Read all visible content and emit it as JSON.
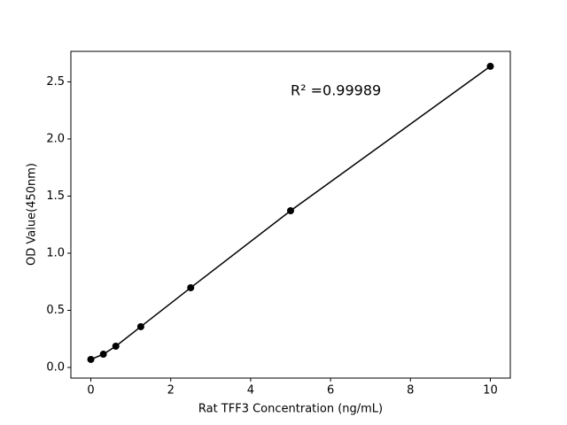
{
  "chart_data": {
    "type": "line",
    "x_label": "Rat TFF3 Concentration (ng/mL)",
    "y_label": "OD Value(450nm)",
    "annotation": "R² =0.99989",
    "x": [
      0,
      0.3125,
      0.625,
      1.25,
      2.5,
      5,
      10
    ],
    "series": [
      {
        "color": "#000000",
        "values": [
          0.07,
          0.116,
          0.186,
          0.357,
          0.698,
          1.372,
          2.636
        ]
      }
    ],
    "xlim": [
      -0.5,
      10.5
    ],
    "ylim": [
      -0.093,
      2.767
    ],
    "xticks": [
      0,
      2,
      4,
      6,
      8,
      10
    ],
    "yticks": [
      {
        "value": 0,
        "label": "0.0"
      },
      {
        "value": 0.5,
        "label": "0.5"
      },
      {
        "value": 1,
        "label": "1.0"
      },
      {
        "value": 1.5,
        "label": "1.5"
      },
      {
        "value": 2,
        "label": "2.0"
      },
      {
        "value": 2.5,
        "label": "2.5"
      }
    ]
  }
}
